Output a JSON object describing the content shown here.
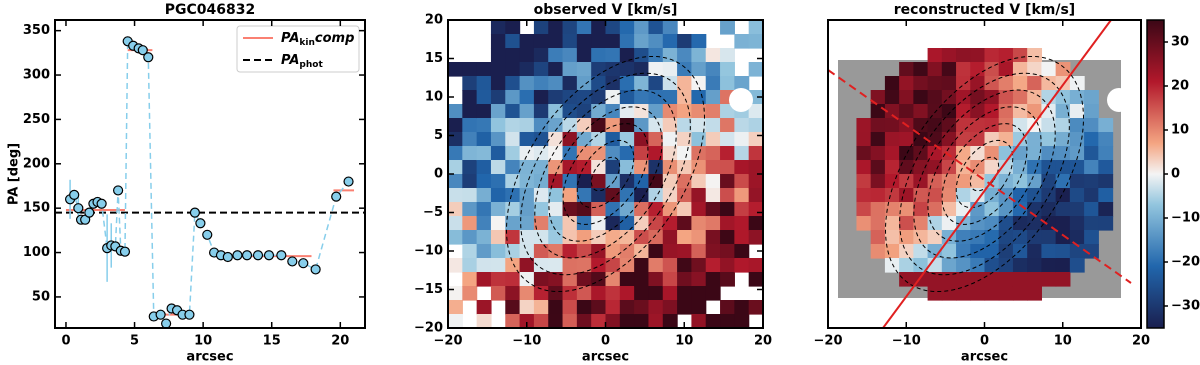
{
  "chart_data": [
    {
      "type": "scatter",
      "title": "PGC046832",
      "x_label": "arcsec",
      "y_label": "PA [deg]",
      "xlim": [
        -0.8,
        21.8
      ],
      "ylim": [
        15,
        362
      ],
      "xticks": [
        0,
        5,
        10,
        15,
        20
      ],
      "yticks": [
        50,
        100,
        150,
        200,
        250,
        300,
        350
      ],
      "x": [
        0.3,
        0.6,
        0.9,
        1.1,
        1.4,
        1.7,
        2.0,
        2.3,
        2.6,
        3.0,
        3.3,
        3.6,
        3.8,
        4.0,
        4.3,
        4.5,
        4.9,
        5.3,
        5.6,
        6.0,
        6.4,
        6.9,
        7.3,
        7.7,
        8.1,
        8.5,
        9.0,
        9.4,
        9.8,
        10.3,
        10.8,
        11.3,
        11.8,
        12.5,
        13.2,
        14.0,
        14.8,
        15.7,
        16.5,
        17.3,
        18.2,
        19.7,
        20.6
      ],
      "values": [
        160,
        165,
        150,
        137,
        137,
        145,
        155,
        157,
        155,
        105,
        108,
        107,
        170,
        102,
        101,
        338,
        333,
        330,
        328,
        320,
        28,
        30,
        20,
        37,
        35,
        30,
        30,
        145,
        133,
        120,
        100,
        97,
        95,
        97,
        97,
        97,
        97,
        97,
        90,
        88,
        81,
        163,
        180
      ],
      "errors": [
        22,
        null,
        15,
        null,
        null,
        null,
        null,
        null,
        null,
        38,
        25,
        null,
        null,
        null,
        null,
        null,
        null,
        null,
        null,
        null,
        null,
        null,
        null,
        null,
        null,
        null,
        null,
        null,
        null,
        null,
        null,
        null,
        null,
        null,
        null,
        null,
        null,
        null,
        null,
        null,
        null,
        null,
        null
      ],
      "color": "#87ceeb",
      "kin_segments": {
        "x0": [
          0,
          4.5,
          6.3,
          10.8,
          19.5
        ],
        "x1": [
          4.3,
          6.3,
          9.3,
          17.9,
          21
        ],
        "values": [
          148,
          328,
          30,
          96,
          170
        ],
        "color": "#fa8072"
      },
      "phot_line": {
        "value": 145,
        "color": "#000000"
      },
      "legend": [
        {
          "text": "PA",
          "sub": "kin",
          "after": "comp"
        },
        {
          "text": "PA",
          "sub": "phot"
        }
      ]
    },
    {
      "type": "map",
      "title": "observed V [km/s]",
      "x_label": "arcsec",
      "xlim": [
        -20,
        20
      ],
      "ylim": [
        -20,
        20
      ],
      "xticks": [
        {
          "value": -20,
          "label": "−20"
        },
        {
          "value": -10,
          "label": "−10"
        },
        0,
        10,
        20
      ],
      "yticks": [
        {
          "value": -20,
          "label": "−20"
        },
        {
          "value": -15,
          "label": "−15"
        },
        {
          "value": -10,
          "label": "−10"
        },
        {
          "value": -5,
          "label": "−5"
        },
        0,
        5,
        10,
        15,
        20
      ]
    },
    {
      "type": "map",
      "title": "reconstructed V [km/s]",
      "x_label": "arcsec",
      "xlim": [
        -20,
        20
      ],
      "ylim": [
        -20,
        20
      ],
      "xticks": [
        {
          "value": -20,
          "label": "−20"
        },
        {
          "value": -10,
          "label": "−10"
        },
        0,
        10,
        20
      ],
      "colorbar": {
        "lim": [
          -35,
          35
        ],
        "ticks": [
          {
            "value": -30,
            "label": "−30"
          },
          {
            "value": -20,
            "label": "−20"
          },
          {
            "value": -10,
            "label": "−10"
          },
          0,
          10,
          20,
          30
        ]
      }
    }
  ]
}
